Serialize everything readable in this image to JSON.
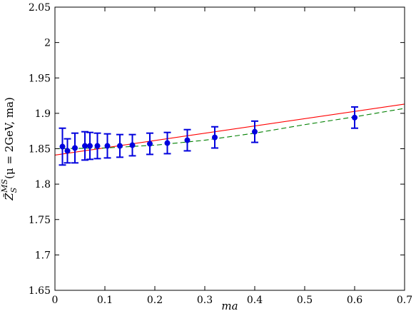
{
  "chart_data": {
    "type": "scatter",
    "xlabel": "ma",
    "ylabel": "Z̃_S^{\\overline{MS}}(μ = 2GeV, ma)",
    "ylabel_parts": {
      "base": "Z̃",
      "sub": "S",
      "sup": "MS",
      "tail": "(μ = 2GeV, ma)"
    },
    "xlim": [
      0,
      0.7
    ],
    "ylim": [
      1.65,
      2.05
    ],
    "xticks": [
      0,
      0.1,
      0.2,
      0.3,
      0.4,
      0.5,
      0.6,
      0.7
    ],
    "xtick_labels": [
      "0",
      "0.1",
      "0.2",
      "0.3",
      "0.4",
      "0.5",
      "0.6",
      "0.7"
    ],
    "yticks": [
      1.65,
      1.7,
      1.75,
      1.8,
      1.85,
      1.9,
      1.95,
      2.0,
      2.05
    ],
    "ytick_labels": [
      "1.65",
      "1.7",
      "1.75",
      "1.8",
      "1.85",
      "1.9",
      "1.95",
      "2",
      "2.05"
    ],
    "grid": false,
    "legend": "none",
    "series": [
      {
        "kind": "points-with-errorbars",
        "color": "#0000dd",
        "points": [
          {
            "x": 0.015,
            "y": 1.853,
            "err": 0.026
          },
          {
            "x": 0.025,
            "y": 1.847,
            "err": 0.017
          },
          {
            "x": 0.04,
            "y": 1.851,
            "err": 0.021
          },
          {
            "x": 0.06,
            "y": 1.854,
            "err": 0.02
          },
          {
            "x": 0.07,
            "y": 1.854,
            "err": 0.019
          },
          {
            "x": 0.085,
            "y": 1.854,
            "err": 0.018
          },
          {
            "x": 0.105,
            "y": 1.854,
            "err": 0.017
          },
          {
            "x": 0.13,
            "y": 1.854,
            "err": 0.016
          },
          {
            "x": 0.155,
            "y": 1.855,
            "err": 0.015
          },
          {
            "x": 0.19,
            "y": 1.857,
            "err": 0.015
          },
          {
            "x": 0.225,
            "y": 1.858,
            "err": 0.015
          },
          {
            "x": 0.265,
            "y": 1.862,
            "err": 0.015
          },
          {
            "x": 0.32,
            "y": 1.866,
            "err": 0.015
          },
          {
            "x": 0.4,
            "y": 1.874,
            "err": 0.015
          },
          {
            "x": 0.6,
            "y": 1.894,
            "err": 0.015
          }
        ]
      },
      {
        "kind": "line",
        "color": "#ff0000",
        "dash": "solid",
        "x": [
          0,
          0.7
        ],
        "y": [
          1.841,
          1.913
        ]
      },
      {
        "kind": "line",
        "color": "#008000",
        "dash": "dashed",
        "x": [
          0,
          0.1,
          0.2,
          0.3,
          0.4,
          0.5,
          0.6,
          0.7
        ],
        "y": [
          1.85,
          1.851,
          1.855,
          1.862,
          1.872,
          1.884,
          1.895,
          1.907
        ]
      }
    ]
  }
}
